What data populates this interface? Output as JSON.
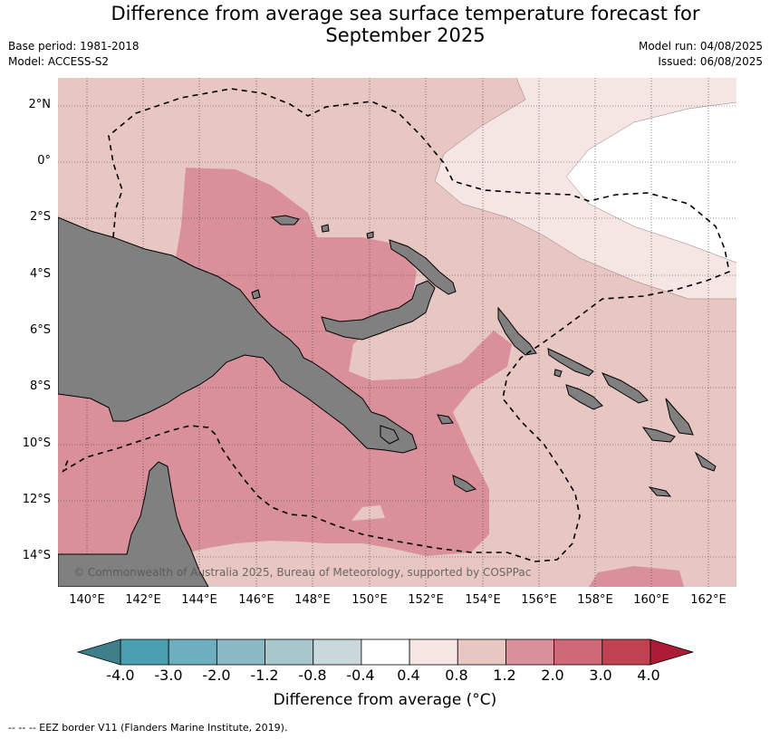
{
  "title_line1": "Difference from average sea surface temperature forecast for",
  "title_line2": "September 2025",
  "base_period": "Base period: 1981-2018",
  "model": "Model: ACCESS-S2",
  "model_run": "Model run: 04/08/2025",
  "issued": "Issued: 06/08/2025",
  "lat_labels": [
    "2°N",
    "0°",
    "2°S",
    "4°S",
    "6°S",
    "8°S",
    "10°S",
    "12°S",
    "14°S"
  ],
  "lon_labels": [
    "140°E",
    "142°E",
    "144°E",
    "146°E",
    "148°E",
    "150°E",
    "152°E",
    "154°E",
    "156°E",
    "158°E",
    "160°E",
    "162°E"
  ],
  "copyright": "© Commonwealth of Australia 2025, Bureau of Meteorology, supported by COSPPac",
  "colorbar": {
    "title": "Difference from average (°C)",
    "ticks": [
      "-4.0",
      "-3.0",
      "-2.0",
      "-1.2",
      "-0.8",
      "-0.4",
      "0.4",
      "0.8",
      "1.2",
      "2.0",
      "3.0",
      "4.0"
    ],
    "colors": [
      "#4aa0b2",
      "#6dafbf",
      "#8ab8c3",
      "#a8c7cc",
      "#c9d9db",
      "#ffffff",
      "#f5e6e4",
      "#e8c7c3",
      "#d9909a",
      "#cd6a76",
      "#c0414f"
    ],
    "under_color": "#3f7f8a",
    "over_color": "#ad1c36"
  },
  "colors": {
    "land": "#808080",
    "sst_0_4": "#f5e6e4",
    "sst_0_8": "#e8c7c3",
    "sst_1_2": "#d9909a",
    "sst_none": "#ffffff"
  },
  "footer": "--  --  -- EEZ border V11 (Flanders Marine Institute, 2019)."
}
